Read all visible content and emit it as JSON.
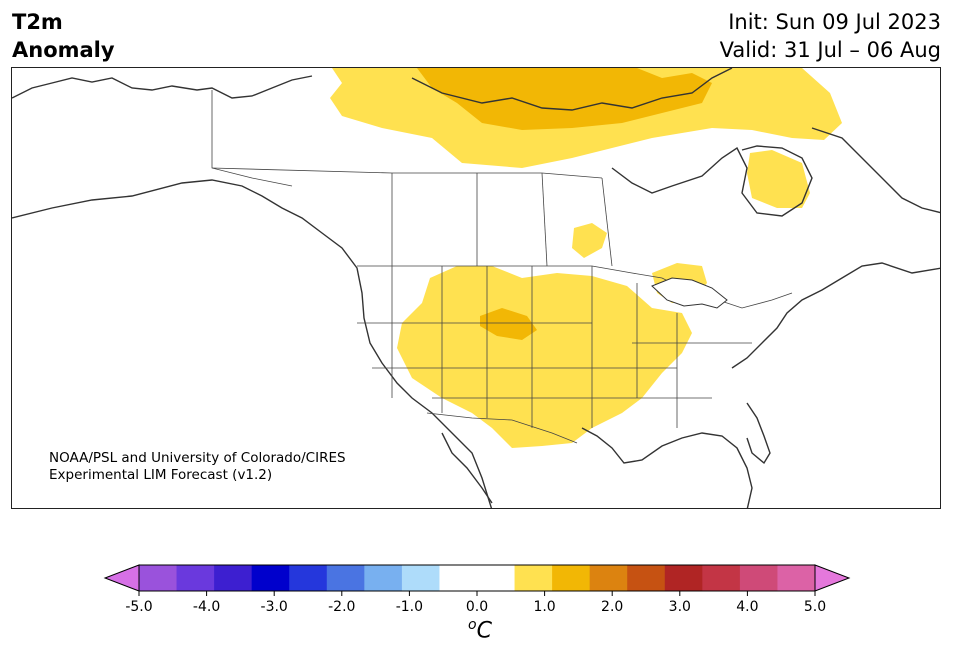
{
  "header": {
    "variable_line1": "T2m",
    "variable_line2": "Anomaly",
    "init_text": "Init: Sun 09 Jul 2023",
    "valid_text": "Valid: 31 Jul – 06 Aug"
  },
  "credit": {
    "line1": "NOAA/PSL and University of Colorado/CIRES",
    "line2": "Experimental LIM Forecast (v1.2)"
  },
  "colorbar": {
    "colors": [
      "#d670e6",
      "#9a52dc",
      "#6a39dd",
      "#3d1fd0",
      "#0000cc",
      "#2537dc",
      "#4a74e2",
      "#78b0f0",
      "#aedcfa",
      "#ffffff",
      "#ffffff",
      "#ffe150",
      "#f2b705",
      "#dc8310",
      "#c65212",
      "#b02524",
      "#c33545",
      "#cf4a78",
      "#dc62a6",
      "#e578dc"
    ],
    "ticks": [
      "-5.0",
      "-4.0",
      "-3.0",
      "-2.0",
      "-1.0",
      "0.0",
      "1.0",
      "2.0",
      "3.0",
      "4.0",
      "5.0"
    ],
    "unit_base": "C",
    "unit_super": "o"
  },
  "map": {
    "anomaly_colors": {
      "light": "#ffe150",
      "medium": "#f2b705"
    },
    "coast_color": "#333333"
  }
}
